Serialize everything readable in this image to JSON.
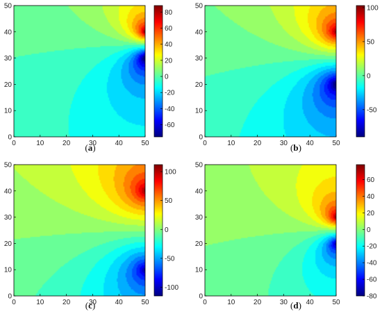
{
  "chart_data": [
    {
      "type": "heatmap",
      "panel_label": "a",
      "xlim": [
        0,
        50
      ],
      "ylim": [
        0,
        50
      ],
      "x_ticks": [
        "0",
        "10",
        "20",
        "30",
        "40",
        "50"
      ],
      "y_ticks": [
        "0",
        "10",
        "20",
        "30",
        "40",
        "50"
      ],
      "colorbar": {
        "range": [
          -75,
          88
        ],
        "ticks": [
          "80",
          "60",
          "40",
          "20",
          "0",
          "-20",
          "-40",
          "-60"
        ]
      },
      "sources": [
        {
          "x": 50,
          "y": 40,
          "sign": "positive"
        },
        {
          "x": 50,
          "y": 30,
          "sign": "negative"
        }
      ]
    },
    {
      "type": "heatmap",
      "panel_label": "b",
      "xlim": [
        0,
        50
      ],
      "ylim": [
        0,
        50
      ],
      "x_ticks": [
        "0",
        "10",
        "20",
        "30",
        "40",
        "50"
      ],
      "y_ticks": [
        "0",
        "10",
        "20",
        "30",
        "40",
        "50"
      ],
      "colorbar": {
        "range": [
          -90,
          103
        ],
        "ticks": [
          "100",
          "50",
          "0",
          "-50"
        ]
      },
      "sources": [
        {
          "x": 50,
          "y": 40,
          "sign": "positive"
        },
        {
          "x": 50,
          "y": 20,
          "sign": "negative"
        }
      ]
    },
    {
      "type": "heatmap",
      "panel_label": "c",
      "xlim": [
        0,
        50
      ],
      "ylim": [
        0,
        50
      ],
      "x_ticks": [
        "0",
        "10",
        "20",
        "30",
        "40",
        "50"
      ],
      "y_ticks": [
        "0",
        "10",
        "20",
        "30",
        "40",
        "50"
      ],
      "colorbar": {
        "range": [
          -115,
          112
        ],
        "ticks": [
          "100",
          "50",
          "0",
          "-50",
          "-100"
        ]
      },
      "sources": [
        {
          "x": 50,
          "y": 40,
          "sign": "positive"
        },
        {
          "x": 50,
          "y": 10,
          "sign": "negative"
        }
      ]
    },
    {
      "type": "heatmap",
      "panel_label": "d",
      "xlim": [
        0,
        50
      ],
      "ylim": [
        0,
        50
      ],
      "x_ticks": [
        "0",
        "10",
        "20",
        "30",
        "40",
        "50"
      ],
      "y_ticks": [
        "0",
        "10",
        "20",
        "30",
        "40",
        "50"
      ],
      "colorbar": {
        "range": [
          -80,
          78
        ],
        "ticks": [
          "60",
          "40",
          "20",
          "0",
          "-20",
          "-40",
          "-60",
          "-80"
        ]
      },
      "sources": [
        {
          "x": 50,
          "y": 30,
          "sign": "positive"
        },
        {
          "x": 50,
          "y": 20,
          "sign": "negative"
        }
      ]
    }
  ]
}
